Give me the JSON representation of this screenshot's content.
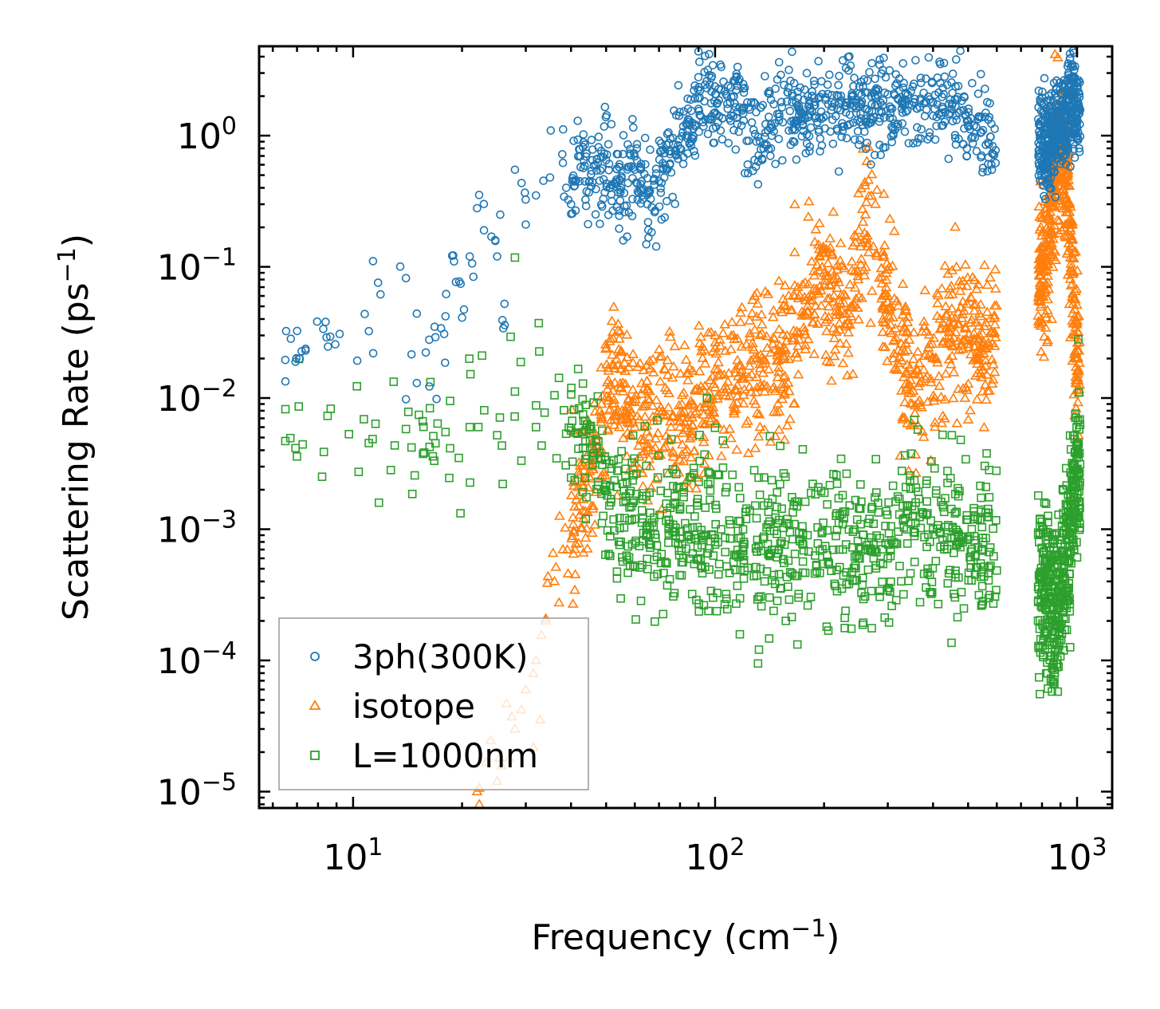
{
  "chart_data": {
    "type": "scatter",
    "title": "",
    "xlabel": "Frequency (cm",
    "xlabel_sup": "−1",
    "xlabel_end": ")",
    "ylabel": "Scattering Rate (ps",
    "ylabel_sup": "−1",
    "ylabel_end": ")",
    "xscale": "log",
    "yscale": "log",
    "xlim": [
      5.5,
      1250
    ],
    "ylim": [
      7.5e-06,
      4.8
    ],
    "x_ticks": [
      {
        "value": 10,
        "base": "10",
        "exp": "1"
      },
      {
        "value": 100,
        "base": "10",
        "exp": "2"
      },
      {
        "value": 1000,
        "base": "10",
        "exp": "3"
      }
    ],
    "y_ticks": [
      {
        "value": 1,
        "base": "10",
        "exp": "0"
      },
      {
        "value": 0.1,
        "base": "10",
        "exp": "−1"
      },
      {
        "value": 0.01,
        "base": "10",
        "exp": "−2"
      },
      {
        "value": 0.001,
        "base": "10",
        "exp": "−3"
      },
      {
        "value": 0.0001,
        "base": "10",
        "exp": "−4"
      },
      {
        "value": 1e-05,
        "base": "10",
        "exp": "−5"
      }
    ],
    "legend_position": "lower-left",
    "series": [
      {
        "name": "3ph(300K)",
        "marker": "circle",
        "color": "#1f77b4",
        "points": [
          [
            6.5,
            0.0195
          ],
          [
            14,
            0.082
          ],
          [
            14,
            0.0098
          ],
          [
            14.5,
            0.0215
          ],
          [
            15,
            0.044
          ],
          [
            15,
            0.013
          ],
          [
            17.5,
            0.034
          ],
          [
            18,
            0.042
          ],
          [
            19,
            0.11
          ],
          [
            20,
            0.041
          ],
          [
            21,
            0.12
          ],
          [
            21.5,
            0.084
          ],
          [
            22,
            0.28
          ],
          [
            23,
            0.19
          ],
          [
            25,
            0.12
          ],
          [
            25.5,
            0.25
          ],
          [
            26,
            0.034
          ],
          [
            28,
            0.55
          ],
          [
            30,
            0.21
          ],
          [
            32,
            0.35
          ],
          [
            35,
            0.48
          ],
          [
            38,
            0.62
          ],
          [
            40,
            0.3
          ],
          [
            42,
            0.7
          ],
          [
            45,
            0.45
          ],
          [
            50,
            0.65
          ],
          [
            55,
            0.4
          ],
          [
            60,
            0.55
          ],
          [
            65,
            0.3
          ],
          [
            70,
            0.45
          ],
          [
            75,
            0.6
          ],
          [
            80,
            0.8
          ],
          [
            85,
            1.2
          ],
          [
            90,
            1.6
          ],
          [
            95,
            2.3
          ],
          [
            100,
            1.5
          ],
          [
            110,
            1.8
          ],
          [
            115,
            2.4
          ],
          [
            120,
            1.3
          ],
          [
            130,
            0.9
          ],
          [
            140,
            1.1
          ],
          [
            150,
            1.3
          ],
          [
            170,
            1.6
          ],
          [
            190,
            1.4
          ],
          [
            210,
            1.8
          ],
          [
            230,
            1.5
          ],
          [
            260,
            1.6
          ],
          [
            290,
            1.7
          ],
          [
            320,
            1.9
          ],
          [
            350,
            1.7
          ],
          [
            400,
            1.8
          ],
          [
            450,
            1.6
          ],
          [
            500,
            1.3
          ],
          [
            550,
            1.1
          ],
          [
            820,
            0.85
          ],
          [
            880,
            1.05
          ],
          [
            930,
            1.4
          ],
          [
            960,
            2.0
          ],
          [
            1000,
            1.6
          ]
        ]
      },
      {
        "name": "isotope",
        "marker": "triangle",
        "color": "#ff7f0e",
        "points": [
          [
            22,
            1e-05
          ],
          [
            25,
            1.2e-05
          ],
          [
            27,
            1.8e-05
          ],
          [
            28,
            3e-05
          ],
          [
            30,
            6e-05
          ],
          [
            32,
            0.0001
          ],
          [
            34,
            0.0002
          ],
          [
            36,
            0.0004
          ],
          [
            38,
            0.0007
          ],
          [
            42,
            0.0015
          ],
          [
            48,
            0.004
          ],
          [
            52,
            0.018
          ],
          [
            55,
            0.012
          ],
          [
            60,
            0.006
          ],
          [
            70,
            0.008
          ],
          [
            80,
            0.006
          ],
          [
            100,
            0.012
          ],
          [
            130,
            0.02
          ],
          [
            150,
            0.017
          ],
          [
            180,
            0.05
          ],
          [
            200,
            0.09
          ],
          [
            230,
            0.035
          ],
          [
            260,
            0.25
          ],
          [
            300,
            0.06
          ],
          [
            350,
            0.009
          ],
          [
            400,
            0.02
          ],
          [
            470,
            0.045
          ],
          [
            550,
            0.025
          ],
          [
            820,
            0.1
          ],
          [
            860,
            0.4
          ],
          [
            900,
            0.9
          ],
          [
            950,
            0.3
          ],
          [
            990,
            0.02
          ]
        ]
      },
      {
        "name": "L=1000nm",
        "marker": "square",
        "color": "#2ca02c",
        "points": [
          [
            6.5,
            0.0047
          ],
          [
            14,
            0.0058
          ],
          [
            14.5,
            0.0042
          ],
          [
            18,
            0.0055
          ],
          [
            21,
            0.006
          ],
          [
            25,
            0.0052
          ],
          [
            28,
            0.0112
          ],
          [
            32,
            0.006
          ],
          [
            36,
            0.0105
          ],
          [
            40,
            0.0059
          ],
          [
            45,
            0.0058
          ],
          [
            50,
            0.002
          ],
          [
            60,
            0.0012
          ],
          [
            80,
            0.00085
          ],
          [
            100,
            0.00085
          ],
          [
            120,
            0.0008
          ],
          [
            150,
            0.0007
          ],
          [
            180,
            0.0009
          ],
          [
            220,
            0.0007
          ],
          [
            260,
            0.0007
          ],
          [
            300,
            0.0006
          ],
          [
            350,
            0.0015
          ],
          [
            400,
            0.001
          ],
          [
            450,
            0.00085
          ],
          [
            500,
            0.00085
          ],
          [
            550,
            0.0008
          ],
          [
            820,
            0.0003
          ],
          [
            880,
            0.00025
          ],
          [
            950,
            0.00085
          ],
          [
            990,
            0.00285
          ]
        ]
      }
    ]
  }
}
